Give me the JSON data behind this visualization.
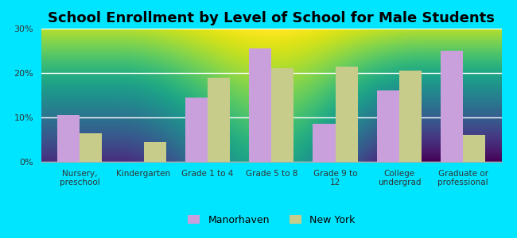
{
  "title": "School Enrollment by Level of School for Male Students",
  "categories": [
    "Nursery,\npreschool",
    "Kindergarten",
    "Grade 1 to 4",
    "Grade 5 to 8",
    "Grade 9 to\n12",
    "College\nundergrad",
    "Graduate or\nprofessional"
  ],
  "manorhaven": [
    10.5,
    0,
    14.5,
    25.5,
    8.5,
    16.0,
    25.0
  ],
  "new_york": [
    6.5,
    4.5,
    19.0,
    21.0,
    21.5,
    20.5,
    6.0
  ],
  "manorhaven_color": "#c9a0dc",
  "new_york_color": "#c8cc8a",
  "background_color": "#00e5ff",
  "plot_bg_bottom": "#c8e6c0",
  "plot_bg_top": "#f8fff8",
  "ylim": [
    0,
    30
  ],
  "yticks": [
    0,
    10,
    20,
    30
  ],
  "ytick_labels": [
    "0%",
    "10%",
    "20%",
    "30%"
  ],
  "legend_manorhaven": "Manorhaven",
  "legend_new_york": "New York",
  "title_fontsize": 13,
  "bar_width": 0.35
}
